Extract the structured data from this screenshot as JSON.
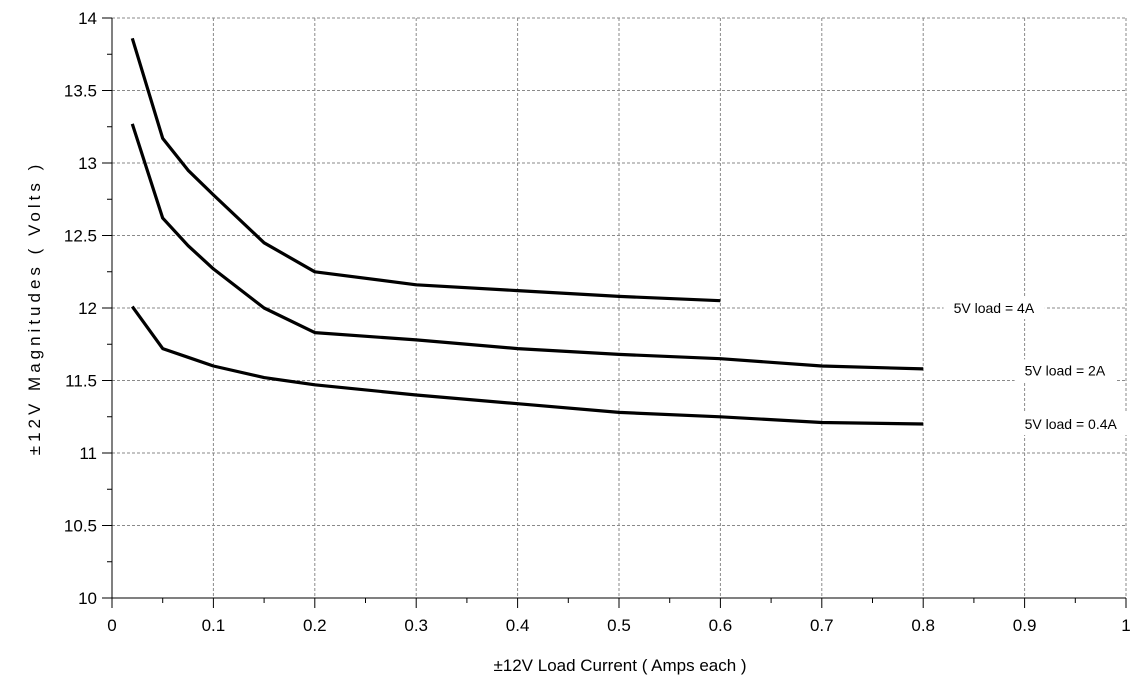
{
  "chart_data": {
    "type": "line",
    "title": "",
    "xlabel": "±12V Load Current ( Amps each )",
    "ylabel": "±12V Magnitudes ( Volts )",
    "xlim": [
      0,
      1
    ],
    "ylim": [
      10,
      14
    ],
    "xticks": [
      "0",
      "0.1",
      "0.2",
      "0.3",
      "0.4",
      "0.5",
      "0.6",
      "0.7",
      "0.8",
      "0.9",
      "1"
    ],
    "yticks": [
      "10",
      "10.5",
      "11",
      "11.5",
      "12",
      "12.5",
      "13",
      "13.5",
      "14"
    ],
    "grid": true,
    "series": [
      {
        "name": "5V load = 4A",
        "x": [
          0.02,
          0.05,
          0.075,
          0.1,
          0.15,
          0.2,
          0.3,
          0.4,
          0.5,
          0.6
        ],
        "y": [
          13.86,
          13.17,
          12.95,
          12.78,
          12.45,
          12.25,
          12.16,
          12.12,
          12.08,
          12.05
        ]
      },
      {
        "name": "5V load = 2A",
        "x": [
          0.02,
          0.05,
          0.075,
          0.1,
          0.15,
          0.2,
          0.3,
          0.4,
          0.5,
          0.6,
          0.7,
          0.8
        ],
        "y": [
          13.27,
          12.62,
          12.43,
          12.27,
          12.0,
          11.83,
          11.78,
          11.72,
          11.68,
          11.65,
          11.6,
          11.58
        ]
      },
      {
        "name": "5V load = 0.4A",
        "x": [
          0.02,
          0.05,
          0.075,
          0.1,
          0.15,
          0.2,
          0.3,
          0.4,
          0.5,
          0.6,
          0.7,
          0.8
        ],
        "y": [
          12.01,
          11.72,
          11.66,
          11.6,
          11.52,
          11.47,
          11.4,
          11.34,
          11.28,
          11.25,
          11.21,
          11.2
        ]
      }
    ],
    "annotations": [
      {
        "text": "5V load = 4A",
        "x": 0.83,
        "y": 12.0
      },
      {
        "text": "5V load = 2A",
        "x": 0.9,
        "y": 11.57
      },
      {
        "text": "5V load = 0.4A",
        "x": 0.9,
        "y": 11.2
      }
    ]
  }
}
